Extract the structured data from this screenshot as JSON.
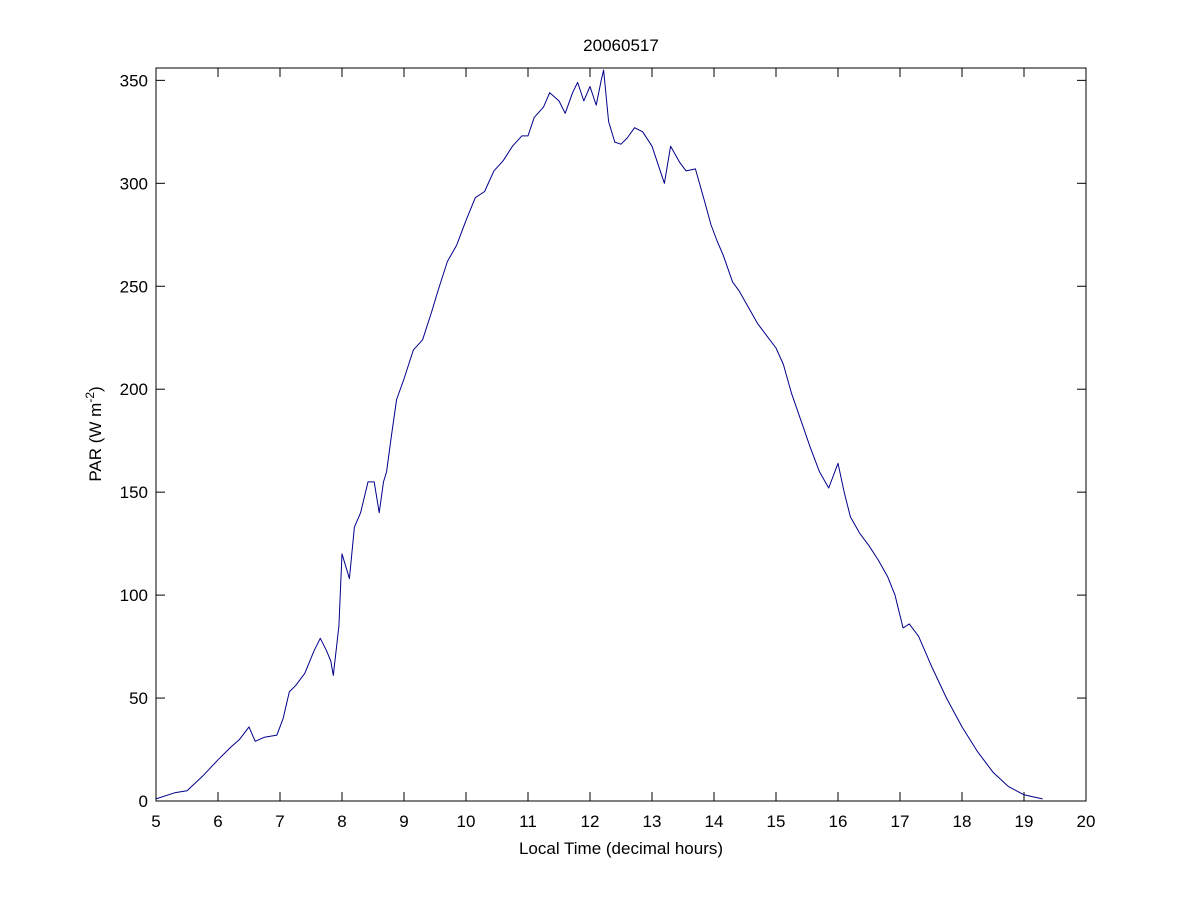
{
  "chart_data": {
    "type": "line",
    "title": "20060517",
    "xlabel": "Local Time (decimal hours)",
    "ylabel": {
      "prefix": "PAR (W m",
      "superscript": "-2",
      "suffix": ")"
    },
    "xlim": [
      5,
      20
    ],
    "ylim": [
      0,
      356
    ],
    "xticks": [
      "5",
      "6",
      "7",
      "8",
      "9",
      "10",
      "11",
      "12",
      "13",
      "14",
      "15",
      "16",
      "17",
      "18",
      "19",
      "20"
    ],
    "yticks": [
      "0",
      "50",
      "100",
      "150",
      "200",
      "250",
      "300",
      "350"
    ],
    "grid": false,
    "legend": "none",
    "series": [
      {
        "color": "#00008b",
        "x": [
          5.0,
          5.3,
          5.5,
          5.75,
          6.0,
          6.2,
          6.35,
          6.5,
          6.6,
          6.75,
          6.95,
          7.05,
          7.15,
          7.25,
          7.4,
          7.55,
          7.65,
          7.75,
          7.82,
          7.86,
          7.95,
          8.0,
          8.05,
          8.12,
          8.2,
          8.3,
          8.42,
          8.52,
          8.6,
          8.67,
          8.72,
          8.8,
          8.88,
          9.0,
          9.15,
          9.3,
          9.45,
          9.55,
          9.7,
          9.85,
          10.0,
          10.15,
          10.3,
          10.45,
          10.6,
          10.75,
          10.9,
          11.0,
          11.1,
          11.25,
          11.35,
          11.5,
          11.6,
          11.72,
          11.8,
          11.9,
          12.0,
          12.1,
          12.18,
          12.22,
          12.3,
          12.4,
          12.5,
          12.6,
          12.72,
          12.85,
          13.0,
          13.1,
          13.2,
          13.3,
          13.45,
          13.55,
          13.7,
          13.85,
          13.95,
          14.05,
          14.15,
          14.3,
          14.4,
          14.55,
          14.7,
          14.85,
          15.0,
          15.12,
          15.25,
          15.4,
          15.55,
          15.7,
          15.85,
          16.0,
          16.1,
          16.2,
          16.35,
          16.5,
          16.65,
          16.8,
          16.92,
          17.05,
          17.15,
          17.3,
          17.5,
          17.75,
          18.0,
          18.25,
          18.5,
          18.75,
          19.0,
          19.15,
          19.3
        ],
        "values": [
          1,
          4,
          5,
          12,
          20,
          26,
          30,
          36,
          29,
          31,
          32,
          40,
          53,
          56,
          62,
          73,
          79,
          73,
          68,
          61,
          85,
          120,
          115,
          108,
          133,
          140,
          155,
          155,
          140,
          155,
          160,
          178,
          195,
          205,
          219,
          224,
          238,
          248,
          262,
          270,
          282,
          293,
          296,
          306,
          311,
          318,
          323,
          323,
          332,
          337,
          344,
          340,
          334,
          344,
          349,
          340,
          347,
          338,
          350,
          355,
          330,
          320,
          319,
          322,
          327,
          325,
          318,
          309,
          300,
          318,
          310,
          306,
          307,
          291,
          280,
          272,
          265,
          252,
          248,
          240,
          232,
          226,
          220,
          212,
          198,
          185,
          172,
          160,
          152,
          164,
          150,
          138,
          130,
          124,
          117,
          109,
          100,
          84,
          86,
          80,
          66,
          50,
          36,
          24,
          14,
          7,
          3,
          2,
          1
        ]
      }
    ]
  }
}
